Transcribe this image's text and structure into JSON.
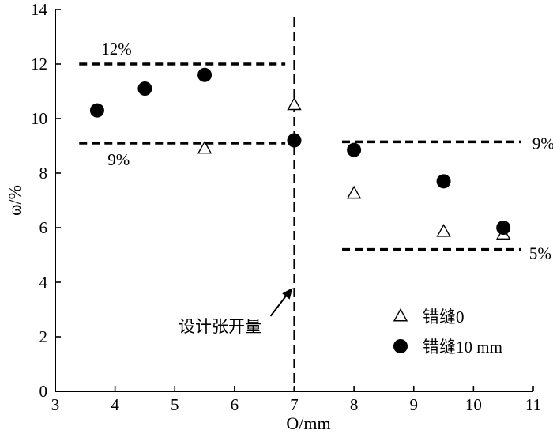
{
  "chart_data": {
    "type": "scatter",
    "xlabel": "O/mm",
    "ylabel": "ω/%",
    "xlim": [
      3,
      11
    ],
    "ylim": [
      0,
      14
    ],
    "xticks": [
      3,
      4,
      5,
      6,
      7,
      8,
      9,
      10,
      11
    ],
    "yticks": [
      0,
      2,
      4,
      6,
      8,
      10,
      12,
      14
    ],
    "grid": false,
    "legend_position": "bottom-right",
    "series": [
      {
        "name": "错缝0",
        "marker": "open-triangle",
        "color": "#000000",
        "x": [
          5.5,
          7.0,
          8.0,
          9.5,
          10.5
        ],
        "y": [
          8.9,
          10.5,
          7.25,
          5.85,
          5.75
        ]
      },
      {
        "name": "错缝10 mm",
        "marker": "filled-circle",
        "color": "#000000",
        "x": [
          3.7,
          4.5,
          5.5,
          7.0,
          8.0,
          9.5,
          10.5
        ],
        "y": [
          10.3,
          11.1,
          11.6,
          9.2,
          8.85,
          7.7,
          6.0
        ]
      }
    ],
    "reference_lines": [
      {
        "label": "12%",
        "y": 12,
        "x_range": [
          3.4,
          6.85
        ]
      },
      {
        "label": "9%",
        "y": 9.1,
        "x_range": [
          3.4,
          6.85
        ]
      },
      {
        "label": "9%",
        "y": 9.15,
        "x_range": [
          7.8,
          10.8
        ]
      },
      {
        "label": "5%",
        "y": 5.2,
        "x_range": [
          7.8,
          10.8
        ]
      }
    ],
    "vertical_line": {
      "x": 7.0
    },
    "annotation": {
      "text": "设计张开量",
      "arrow_to": [
        7.0,
        3.8
      ]
    }
  }
}
